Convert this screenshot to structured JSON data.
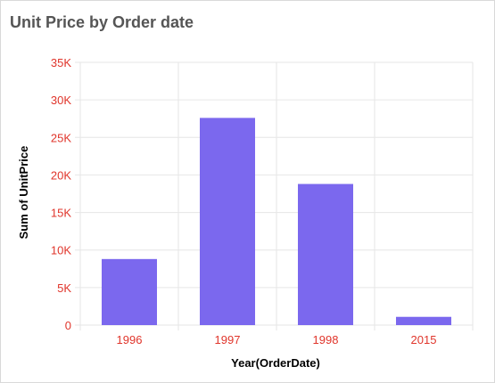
{
  "chart_data": {
    "type": "bar",
    "title": "Unit Price by Order date",
    "xlabel": "Year(OrderDate)",
    "ylabel": "Sum of UnitPrice",
    "categories": [
      "1996",
      "1997",
      "1998",
      "2015"
    ],
    "values": [
      8800,
      27600,
      18800,
      1100
    ],
    "ylim": [
      0,
      35000
    ],
    "yticks": [
      0,
      5000,
      10000,
      15000,
      20000,
      25000,
      30000,
      35000
    ],
    "ytick_labels": [
      "0",
      "5K",
      "10K",
      "15K",
      "20K",
      "25K",
      "30K",
      "35K"
    ],
    "grid": true,
    "colors": {
      "bar": "#7b68ee",
      "tick": "#e0352b",
      "grid": "#e6e6e6"
    }
  }
}
